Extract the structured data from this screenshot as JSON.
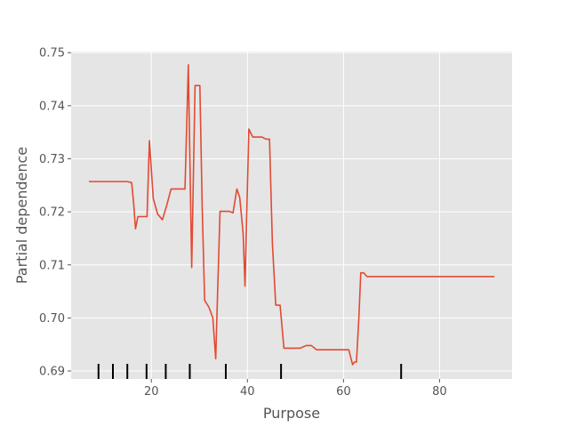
{
  "chart_data": {
    "type": "line",
    "title": "",
    "xlabel": "Purpose",
    "ylabel": "Partial dependence",
    "xlim": [
      3.3,
      95.1
    ],
    "ylim": [
      0.6885,
      0.7502
    ],
    "grid": true,
    "xticks": [
      20,
      40,
      60,
      80
    ],
    "xtick_labels": [
      "20",
      "40",
      "60",
      "80"
    ],
    "yticks": [
      0.69,
      0.7,
      0.71,
      0.72,
      0.73,
      0.74,
      0.75
    ],
    "ytick_labels": [
      "0.69",
      "0.70",
      "0.71",
      "0.72",
      "0.73",
      "0.74",
      "0.75"
    ],
    "rug_x": [
      9,
      12,
      15,
      19,
      23,
      28,
      35.5,
      47,
      72
    ],
    "colors": {
      "line": "#e24a33",
      "background": "#e5e5e5",
      "grid": "#ffffff",
      "rug": "#000000"
    },
    "series": [
      {
        "x": [
          7,
          9,
          11,
          13,
          15,
          15.9,
          16.3,
          16.7,
          17.2,
          18,
          19.1,
          19.6,
          20.4,
          21.3,
          22.3,
          23.2,
          24.1,
          25.2,
          26.1,
          27,
          27.7,
          28.4,
          29.1,
          29.7,
          30.1,
          30.6,
          31.1,
          32,
          32.8,
          33.4,
          33.8,
          34.3,
          35.3,
          36.2,
          37,
          37.8,
          38.4,
          39.1,
          39.5,
          39.9,
          40.3,
          41.1,
          42,
          43,
          43.9,
          44.6,
          45.2,
          45.9,
          46.8,
          47.6,
          48.6,
          51,
          52.2,
          53.3,
          54.4,
          55.8,
          61.1,
          61.9,
          62.3,
          62.7,
          63.2,
          63.6,
          64.2,
          64.9,
          66,
          75,
          85,
          91.4
        ],
        "y": [
          0.7257,
          0.7257,
          0.7257,
          0.7257,
          0.7257,
          0.7255,
          0.7218,
          0.7168,
          0.7191,
          0.7191,
          0.7191,
          0.7334,
          0.7225,
          0.7196,
          0.7185,
          0.7212,
          0.7243,
          0.7243,
          0.7243,
          0.7243,
          0.7477,
          0.7095,
          0.7438,
          0.7438,
          0.7438,
          0.7204,
          0.7033,
          0.702,
          0.7,
          0.6923,
          0.705,
          0.7201,
          0.7201,
          0.7201,
          0.7198,
          0.7243,
          0.7227,
          0.716,
          0.706,
          0.721,
          0.7356,
          0.7341,
          0.7341,
          0.7341,
          0.7337,
          0.7337,
          0.714,
          0.7024,
          0.7024,
          0.6943,
          0.6943,
          0.6943,
          0.6948,
          0.6948,
          0.694,
          0.694,
          0.694,
          0.6912,
          0.6917,
          0.6917,
          0.7,
          0.7085,
          0.7085,
          0.7078,
          0.7078,
          0.7078,
          0.7078,
          0.7078
        ]
      }
    ]
  }
}
